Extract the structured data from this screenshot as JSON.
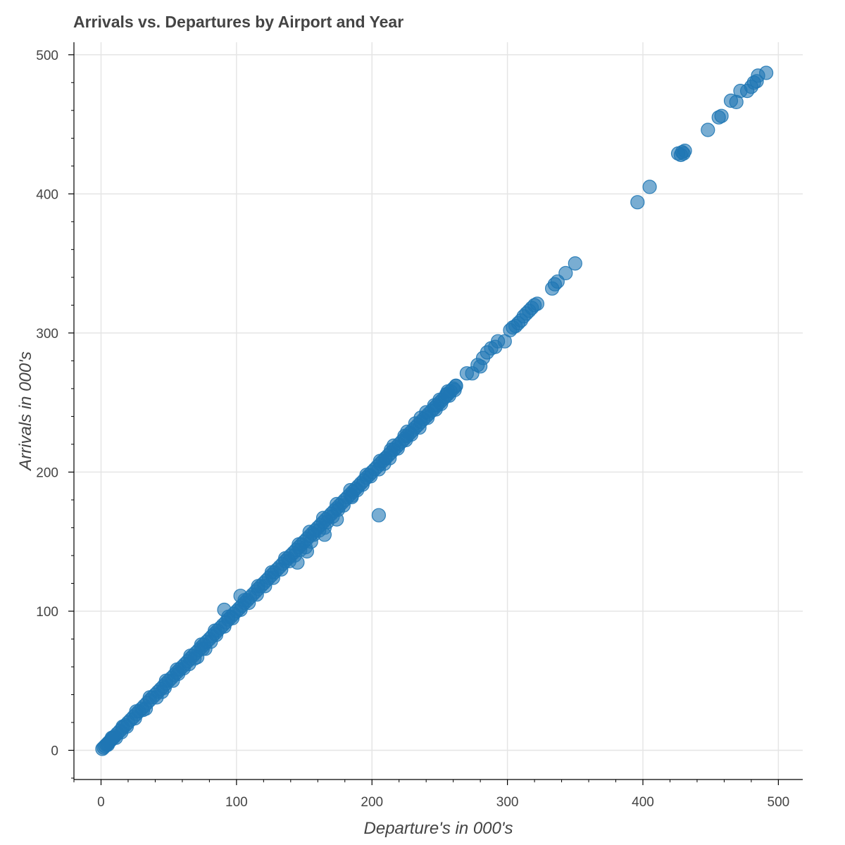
{
  "chart_data": {
    "type": "scatter",
    "title": "Arrivals vs. Departures by Airport and Year",
    "xlabel": "Departure's in 000's",
    "ylabel": "Arrivals in 000's",
    "xlim": [
      -20,
      518
    ],
    "ylim": [
      -21,
      509
    ],
    "xticks": [
      0,
      100,
      200,
      300,
      400,
      500
    ],
    "yticks": [
      0,
      100,
      200,
      300,
      400,
      500
    ],
    "grid": true,
    "marker_color": "#1f77b4",
    "marker_opacity": 0.6,
    "points": [
      [
        1,
        1
      ],
      [
        2,
        2
      ],
      [
        3,
        3
      ],
      [
        4,
        4
      ],
      [
        5,
        5
      ],
      [
        6,
        6
      ],
      [
        7,
        7
      ],
      [
        8,
        8
      ],
      [
        9,
        9
      ],
      [
        10,
        10
      ],
      [
        12,
        12
      ],
      [
        14,
        14
      ],
      [
        16,
        16
      ],
      [
        18,
        18
      ],
      [
        20,
        20
      ],
      [
        22,
        22
      ],
      [
        24,
        24
      ],
      [
        26,
        26
      ],
      [
        28,
        28
      ],
      [
        30,
        30
      ],
      [
        32,
        32
      ],
      [
        34,
        34
      ],
      [
        36,
        36
      ],
      [
        38,
        38
      ],
      [
        40,
        40
      ],
      [
        42,
        42
      ],
      [
        44,
        44
      ],
      [
        46,
        46
      ],
      [
        48,
        48
      ],
      [
        50,
        50
      ],
      [
        52,
        52
      ],
      [
        54,
        54
      ],
      [
        56,
        56
      ],
      [
        58,
        58
      ],
      [
        60,
        60
      ],
      [
        62,
        62
      ],
      [
        64,
        64
      ],
      [
        66,
        66
      ],
      [
        68,
        68
      ],
      [
        70,
        70
      ],
      [
        72,
        72
      ],
      [
        74,
        74
      ],
      [
        76,
        76
      ],
      [
        78,
        78
      ],
      [
        80,
        80
      ],
      [
        82,
        82
      ],
      [
        84,
        84
      ],
      [
        86,
        86
      ],
      [
        88,
        88
      ],
      [
        90,
        90
      ],
      [
        92,
        92
      ],
      [
        94,
        94
      ],
      [
        96,
        96
      ],
      [
        98,
        98
      ],
      [
        100,
        100
      ],
      [
        102,
        102
      ],
      [
        104,
        104
      ],
      [
        106,
        106
      ],
      [
        108,
        108
      ],
      [
        110,
        110
      ],
      [
        112,
        112
      ],
      [
        114,
        114
      ],
      [
        116,
        116
      ],
      [
        118,
        118
      ],
      [
        120,
        120
      ],
      [
        122,
        122
      ],
      [
        124,
        124
      ],
      [
        126,
        126
      ],
      [
        128,
        128
      ],
      [
        130,
        130
      ],
      [
        132,
        132
      ],
      [
        134,
        134
      ],
      [
        136,
        136
      ],
      [
        138,
        138
      ],
      [
        140,
        140
      ],
      [
        142,
        142
      ],
      [
        144,
        144
      ],
      [
        146,
        146
      ],
      [
        148,
        148
      ],
      [
        150,
        150
      ],
      [
        152,
        152
      ],
      [
        154,
        154
      ],
      [
        156,
        156
      ],
      [
        158,
        158
      ],
      [
        160,
        160
      ],
      [
        162,
        162
      ],
      [
        164,
        164
      ],
      [
        166,
        166
      ],
      [
        168,
        168
      ],
      [
        170,
        170
      ],
      [
        172,
        172
      ],
      [
        174,
        174
      ],
      [
        176,
        176
      ],
      [
        178,
        178
      ],
      [
        180,
        180
      ],
      [
        182,
        182
      ],
      [
        184,
        184
      ],
      [
        186,
        186
      ],
      [
        188,
        188
      ],
      [
        190,
        190
      ],
      [
        192,
        192
      ],
      [
        194,
        194
      ],
      [
        196,
        196
      ],
      [
        198,
        198
      ],
      [
        200,
        200
      ],
      [
        202,
        202
      ],
      [
        204,
        204
      ],
      [
        206,
        206
      ],
      [
        208,
        208
      ],
      [
        210,
        210
      ],
      [
        212,
        212
      ],
      [
        214,
        214
      ],
      [
        216,
        216
      ],
      [
        218,
        218
      ],
      [
        220,
        220
      ],
      [
        222,
        222
      ],
      [
        224,
        224
      ],
      [
        226,
        226
      ],
      [
        228,
        228
      ],
      [
        230,
        230
      ],
      [
        232,
        232
      ],
      [
        234,
        234
      ],
      [
        236,
        236
      ],
      [
        238,
        238
      ],
      [
        240,
        240
      ],
      [
        242,
        242
      ],
      [
        244,
        244
      ],
      [
        246,
        246
      ],
      [
        248,
        248
      ],
      [
        250,
        250
      ],
      [
        252,
        252
      ],
      [
        254,
        254
      ],
      [
        256,
        256
      ],
      [
        258,
        258
      ],
      [
        260,
        260
      ],
      [
        262,
        262
      ],
      [
        5,
        4
      ],
      [
        11,
        9
      ],
      [
        15,
        13
      ],
      [
        19,
        17
      ],
      [
        25,
        23
      ],
      [
        31,
        29
      ],
      [
        33,
        30
      ],
      [
        41,
        38
      ],
      [
        45,
        42
      ],
      [
        47,
        45
      ],
      [
        53,
        50
      ],
      [
        57,
        55
      ],
      [
        61,
        59
      ],
      [
        65,
        62
      ],
      [
        69,
        66
      ],
      [
        71,
        67
      ],
      [
        75,
        73
      ],
      [
        77,
        73
      ],
      [
        81,
        78
      ],
      [
        85,
        83
      ],
      [
        91,
        89
      ],
      [
        97,
        95
      ],
      [
        103,
        101
      ],
      [
        109,
        106
      ],
      [
        115,
        112
      ],
      [
        121,
        118
      ],
      [
        127,
        124
      ],
      [
        133,
        130
      ],
      [
        139,
        136
      ],
      [
        143,
        140
      ],
      [
        147,
        144
      ],
      [
        151,
        146
      ],
      [
        155,
        150
      ],
      [
        157,
        155
      ],
      [
        161,
        158
      ],
      [
        165,
        160
      ],
      [
        167,
        164
      ],
      [
        171,
        168
      ],
      [
        175,
        173
      ],
      [
        179,
        176
      ],
      [
        185,
        182
      ],
      [
        189,
        187
      ],
      [
        193,
        191
      ],
      [
        199,
        197
      ],
      [
        205,
        202
      ],
      [
        209,
        206
      ],
      [
        213,
        210
      ],
      [
        219,
        217
      ],
      [
        225,
        223
      ],
      [
        229,
        227
      ],
      [
        235,
        232
      ],
      [
        241,
        239
      ],
      [
        247,
        245
      ],
      [
        251,
        249
      ],
      [
        257,
        255
      ],
      [
        261,
        259
      ],
      [
        8,
        9
      ],
      [
        16,
        17
      ],
      [
        26,
        28
      ],
      [
        36,
        38
      ],
      [
        48,
        50
      ],
      [
        56,
        58
      ],
      [
        66,
        68
      ],
      [
        74,
        76
      ],
      [
        84,
        86
      ],
      [
        94,
        96
      ],
      [
        106,
        108
      ],
      [
        116,
        118
      ],
      [
        126,
        128
      ],
      [
        136,
        138
      ],
      [
        146,
        148
      ],
      [
        154,
        157
      ],
      [
        164,
        167
      ],
      [
        174,
        177
      ],
      [
        184,
        187
      ],
      [
        196,
        198
      ],
      [
        206,
        208
      ],
      [
        216,
        219
      ],
      [
        226,
        229
      ],
      [
        236,
        239
      ],
      [
        246,
        248
      ],
      [
        256,
        258
      ],
      [
        91,
        101
      ],
      [
        103,
        111
      ],
      [
        145,
        135
      ],
      [
        152,
        143
      ],
      [
        165,
        155
      ],
      [
        174,
        166
      ],
      [
        185,
        183
      ],
      [
        210,
        210
      ],
      [
        205,
        169
      ],
      [
        214,
        216
      ],
      [
        224,
        226
      ],
      [
        232,
        235
      ],
      [
        240,
        243
      ],
      [
        250,
        252
      ],
      [
        255,
        256
      ],
      [
        262,
        262
      ],
      [
        270,
        271
      ],
      [
        274,
        271
      ],
      [
        278,
        277
      ],
      [
        280,
        276
      ],
      [
        282,
        282
      ],
      [
        285,
        286
      ],
      [
        288,
        289
      ],
      [
        291,
        290
      ],
      [
        293,
        294
      ],
      [
        298,
        294
      ],
      [
        302,
        302
      ],
      [
        304,
        304
      ],
      [
        306,
        305
      ],
      [
        308,
        307
      ],
      [
        310,
        309
      ],
      [
        312,
        312
      ],
      [
        314,
        314
      ],
      [
        316,
        316
      ],
      [
        318,
        318
      ],
      [
        320,
        320
      ],
      [
        322,
        321
      ],
      [
        333,
        332
      ],
      [
        335,
        335
      ],
      [
        337,
        337
      ],
      [
        343,
        343
      ],
      [
        350,
        350
      ],
      [
        396,
        394
      ],
      [
        405,
        405
      ],
      [
        426,
        429
      ],
      [
        428,
        428
      ],
      [
        429,
        430
      ],
      [
        430,
        429
      ],
      [
        431,
        431
      ],
      [
        448,
        446
      ],
      [
        456,
        455
      ],
      [
        458,
        456
      ],
      [
        465,
        467
      ],
      [
        469,
        466
      ],
      [
        472,
        474
      ],
      [
        477,
        474
      ],
      [
        480,
        477
      ],
      [
        482,
        480
      ],
      [
        484,
        481
      ],
      [
        485,
        485
      ],
      [
        491,
        487
      ]
    ]
  }
}
